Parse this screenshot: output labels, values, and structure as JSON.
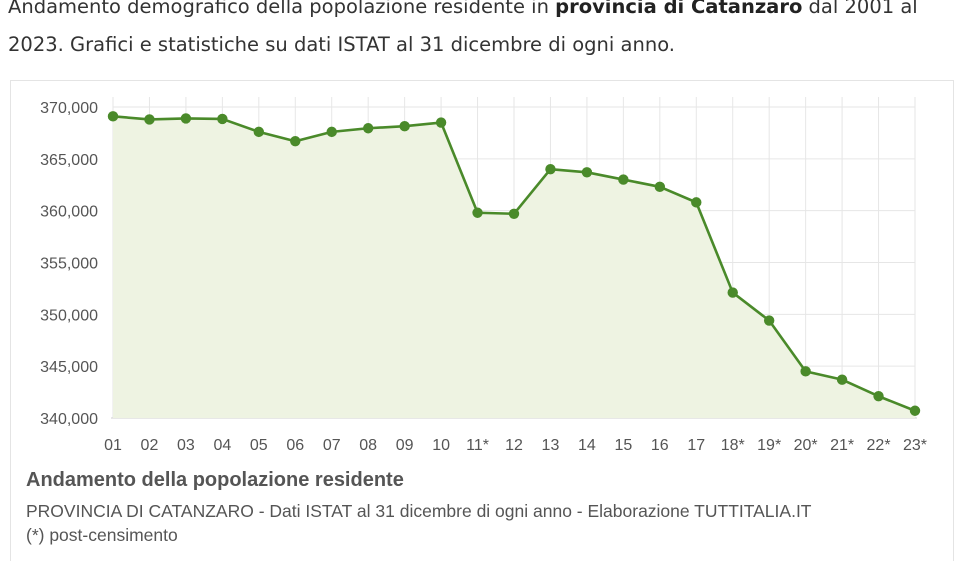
{
  "intro": {
    "part1": "Andamento demografico della popolazione residente in ",
    "bold": "provincia di Catanzaro",
    "part2": " dal 2001 al 2023. Grafici e statistiche su dati ISTAT al 31 dicembre di ogni anno."
  },
  "colors": {
    "line": "#4a8a2a",
    "fill": "#eef3e2",
    "grid": "#e6e6e6"
  },
  "chart_data": {
    "type": "area",
    "title": "Andamento della popolazione residente",
    "subtitle": "PROVINCIA DI CATANZARO - Dati ISTAT al 31 dicembre di ogni anno - Elaborazione TUTTITALIA.IT",
    "note": "(*) post-censimento",
    "xlabel": "",
    "ylabel": "",
    "categories": [
      "01",
      "02",
      "03",
      "04",
      "05",
      "06",
      "07",
      "08",
      "09",
      "10",
      "11*",
      "12",
      "13",
      "14",
      "15",
      "16",
      "17",
      "18*",
      "19*",
      "20*",
      "21*",
      "22*",
      "23*"
    ],
    "series": [
      {
        "values": [
          369100,
          368800,
          368900,
          368850,
          367600,
          366700,
          367600,
          367950,
          368150,
          368500,
          359800,
          359700,
          364000,
          363700,
          363000,
          362300,
          360800,
          352100,
          349400,
          344500,
          343700,
          342100,
          340700
        ]
      }
    ],
    "yticks": [
      "340,000",
      "345,000",
      "350,000",
      "355,000",
      "360,000",
      "365,000",
      "370,000"
    ],
    "ylim": [
      340000,
      370000
    ],
    "grid": true,
    "legend": "none"
  }
}
